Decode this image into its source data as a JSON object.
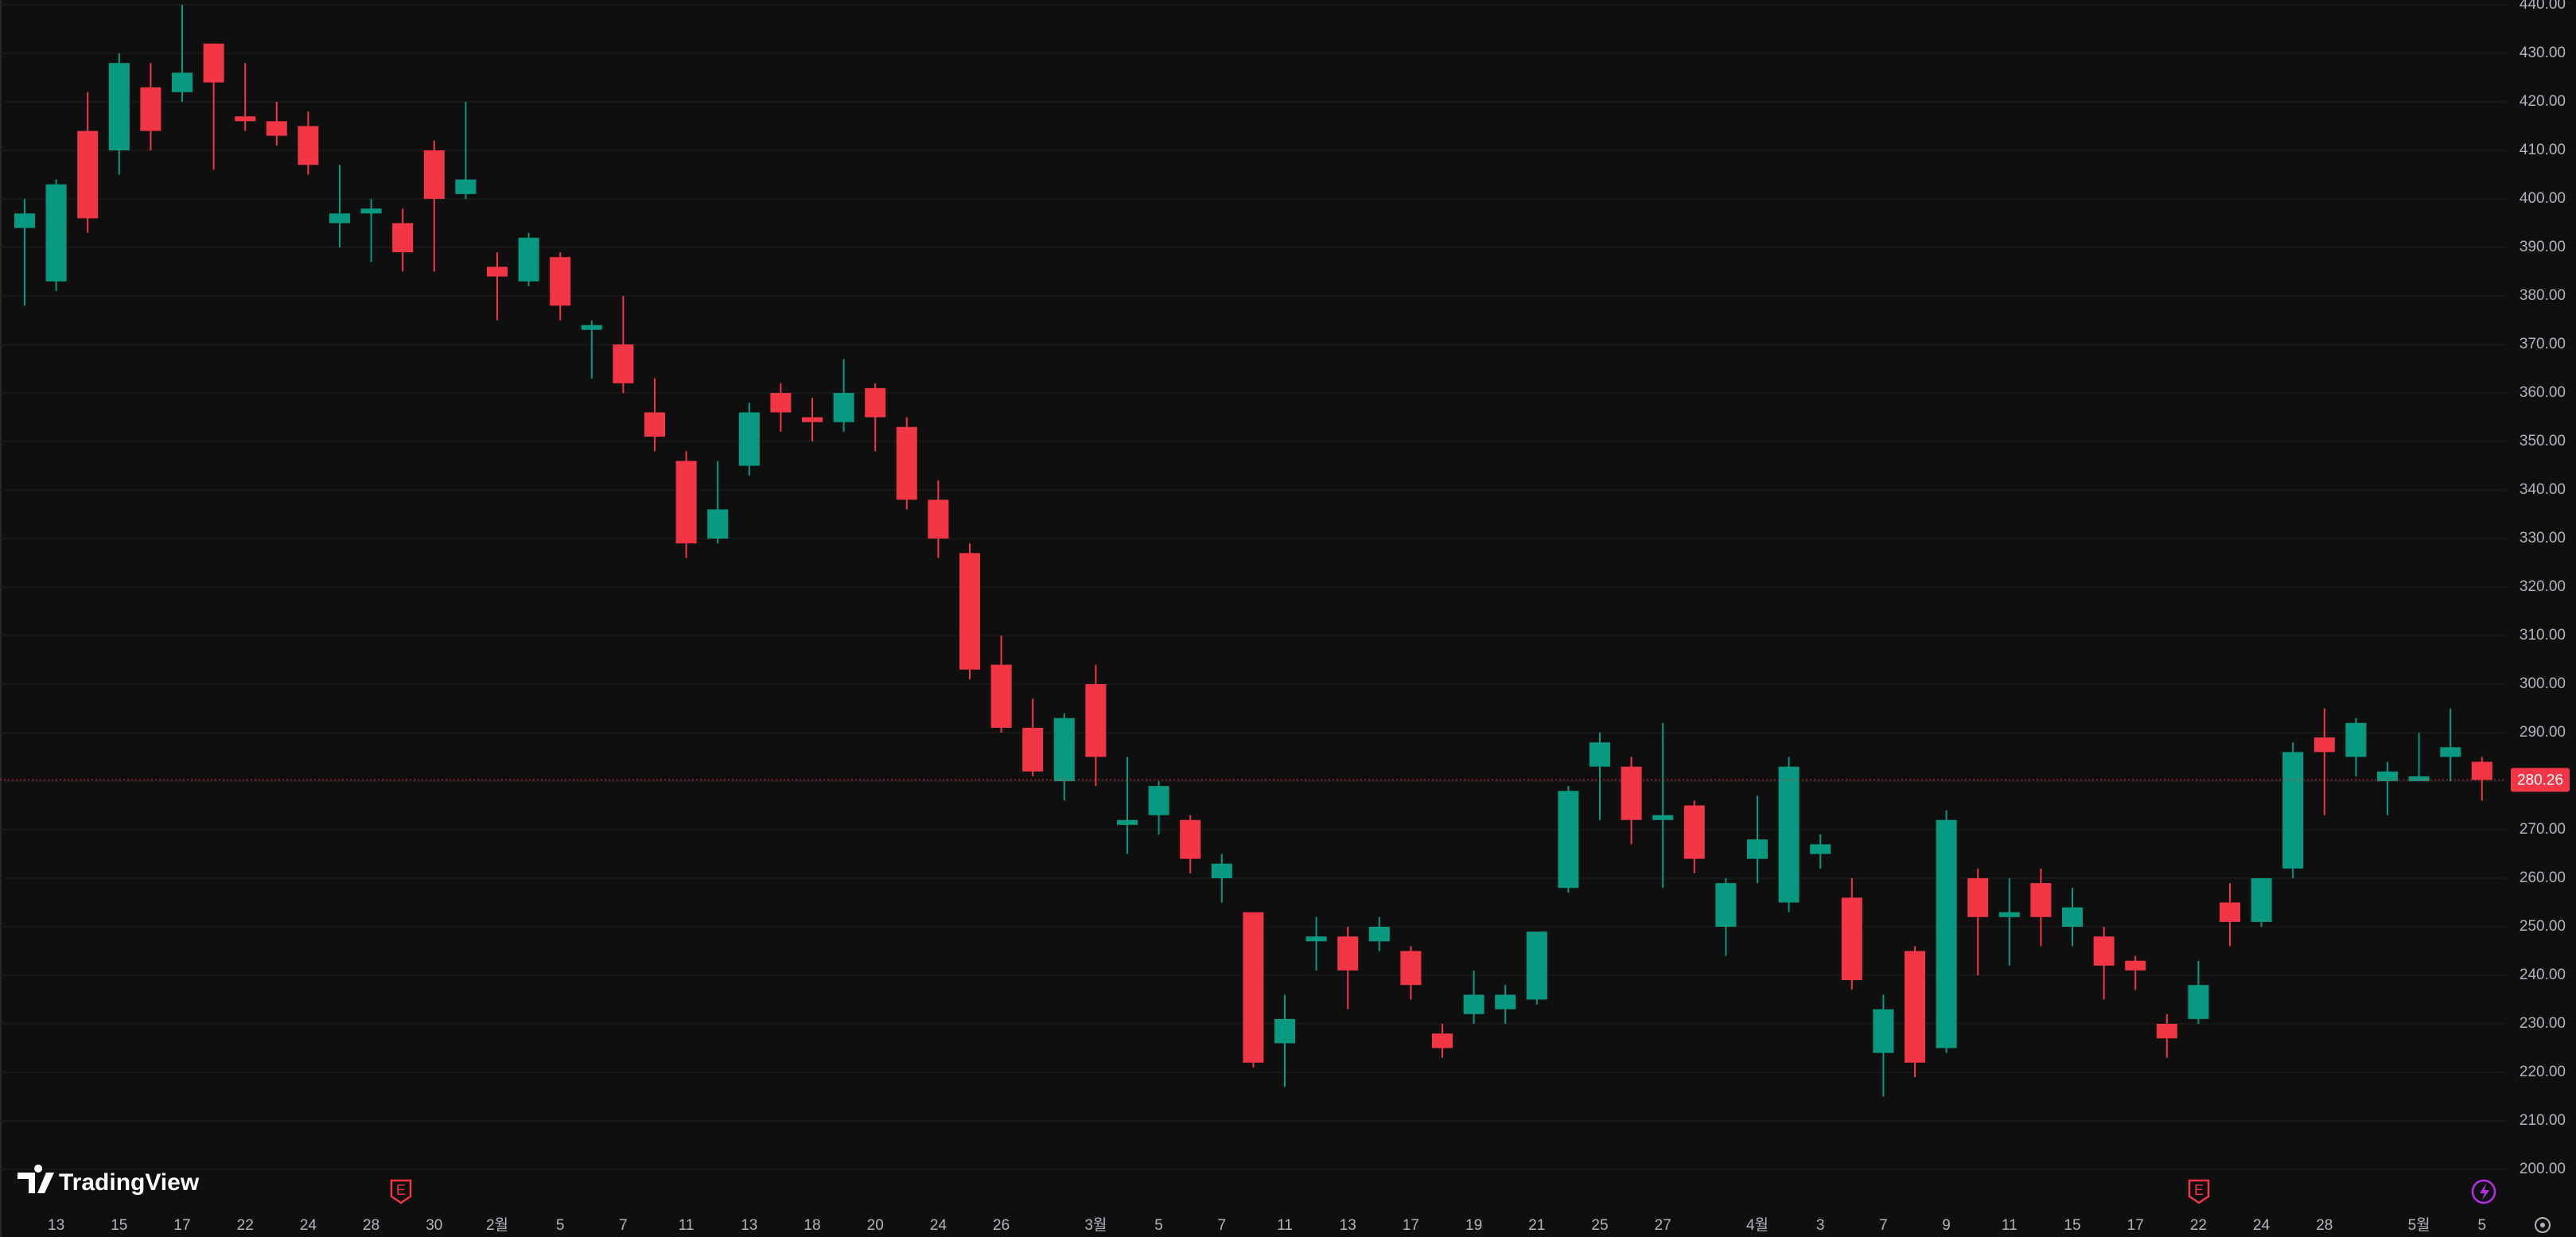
{
  "chart_data": {
    "type": "candlestick",
    "up_color": "#089981",
    "down_color": "#f23645",
    "categories": [
      null,
      "13",
      null,
      "15",
      null,
      "17",
      null,
      "22",
      null,
      "24",
      null,
      "28",
      null,
      "30",
      null,
      "2월",
      null,
      "5",
      null,
      "7",
      null,
      "11",
      null,
      "13",
      null,
      "18",
      null,
      "20",
      null,
      "24",
      null,
      "26",
      null,
      null,
      "3월",
      null,
      "5",
      null,
      "7",
      null,
      "11",
      null,
      "13",
      null,
      "17",
      null,
      "19",
      null,
      "21",
      null,
      "25",
      null,
      "27",
      null,
      null,
      "4월",
      null,
      "3",
      null,
      "7",
      null,
      "9",
      null,
      "11",
      null,
      "15",
      null,
      "17",
      null,
      "22",
      null,
      "24",
      null,
      "28",
      null,
      null,
      "5월",
      null,
      "5"
    ],
    "open": [
      394,
      383,
      414,
      410,
      423,
      422,
      432,
      417,
      416,
      415,
      395,
      397,
      395,
      410,
      401,
      386,
      383,
      388,
      373,
      370,
      356,
      346,
      330,
      345,
      360,
      355,
      354,
      361,
      353,
      338,
      327,
      304,
      291,
      280,
      300,
      271,
      273,
      272,
      260,
      253,
      226,
      247,
      248,
      247,
      245,
      228,
      232,
      233,
      235,
      258,
      283,
      283,
      272,
      275,
      250,
      264,
      255,
      265,
      256,
      224,
      245,
      225,
      260,
      252,
      259,
      250,
      248,
      243,
      230,
      231,
      255,
      251,
      262,
      289,
      285,
      280,
      280,
      285,
      284
    ],
    "high": [
      400,
      404,
      422,
      430,
      428,
      440,
      432,
      428,
      420,
      418,
      407,
      400,
      398,
      412,
      420,
      389,
      393,
      389,
      375,
      380,
      363,
      348,
      346,
      358,
      362,
      359,
      367,
      362,
      355,
      342,
      329,
      310,
      297,
      294,
      304,
      285,
      280,
      273,
      265,
      253,
      236,
      252,
      250,
      252,
      246,
      230,
      241,
      238,
      249,
      279,
      290,
      285,
      292,
      276,
      260,
      277,
      285,
      269,
      260,
      236,
      246,
      274,
      262,
      260,
      262,
      258,
      250,
      244,
      232,
      243,
      259,
      260,
      288,
      295,
      293,
      284,
      290,
      295,
      285
    ],
    "low": [
      378,
      381,
      393,
      405,
      410,
      420,
      406,
      414,
      411,
      405,
      390,
      387,
      385,
      385,
      400,
      375,
      382,
      375,
      363,
      360,
      348,
      326,
      329,
      343,
      352,
      350,
      352,
      348,
      336,
      326,
      301,
      290,
      281,
      276,
      279,
      265,
      269,
      261,
      255,
      221,
      217,
      241,
      233,
      245,
      235,
      223,
      230,
      230,
      234,
      257,
      272,
      267,
      258,
      261,
      244,
      259,
      253,
      262,
      237,
      215,
      219,
      224,
      240,
      242,
      246,
      246,
      235,
      237,
      223,
      230,
      246,
      250,
      260,
      273,
      281,
      273,
      280,
      280,
      276
    ],
    "close": [
      397,
      403,
      396,
      428,
      414,
      426,
      424,
      416,
      413,
      407,
      397,
      398,
      389,
      400,
      404,
      384,
      392,
      378,
      374,
      362,
      351,
      329,
      336,
      356,
      356,
      354,
      360,
      355,
      338,
      330,
      303,
      291,
      282,
      293,
      285,
      272,
      279,
      264,
      263,
      222,
      231,
      248,
      241,
      250,
      238,
      225,
      236,
      236,
      249,
      278,
      288,
      272,
      273,
      264,
      259,
      268,
      283,
      267,
      239,
      233,
      222,
      272,
      252,
      253,
      252,
      254,
      242,
      241,
      227,
      238,
      251,
      260,
      286,
      286,
      292,
      282,
      281,
      287,
      280.26
    ],
    "last_price": 280.26,
    "ylim": [
      200,
      440
    ],
    "yticks": [
      {
        "value": 200,
        "label": "200.00"
      },
      {
        "value": 210,
        "label": "210.00"
      },
      {
        "value": 220,
        "label": "220.00"
      },
      {
        "value": 230,
        "label": "230.00"
      },
      {
        "value": 240,
        "label": "240.00"
      },
      {
        "value": 250,
        "label": "250.00"
      },
      {
        "value": 260,
        "label": "260.00"
      },
      {
        "value": 270,
        "label": "270.00"
      },
      {
        "value": 280,
        "label": "280.00"
      },
      {
        "value": 290,
        "label": "290.00"
      },
      {
        "value": 300,
        "label": "300.00"
      },
      {
        "value": 310,
        "label": "310.00"
      },
      {
        "value": 320,
        "label": "320.00"
      },
      {
        "value": 330,
        "label": "330.00"
      },
      {
        "value": 340,
        "label": "340.00"
      },
      {
        "value": 350,
        "label": "350.00"
      },
      {
        "value": 360,
        "label": "360.00"
      },
      {
        "value": 370,
        "label": "370.00"
      },
      {
        "value": 380,
        "label": "380.00"
      },
      {
        "value": 390,
        "label": "390.00"
      },
      {
        "value": 400,
        "label": "400.00"
      },
      {
        "value": 410,
        "label": "410.00"
      },
      {
        "value": 420,
        "label": "420.00"
      },
      {
        "value": 430,
        "label": "430.00"
      },
      {
        "value": 440,
        "label": "440.00"
      }
    ],
    "grid": true
  },
  "logo": "TradingView",
  "events": [
    "E",
    "E"
  ]
}
